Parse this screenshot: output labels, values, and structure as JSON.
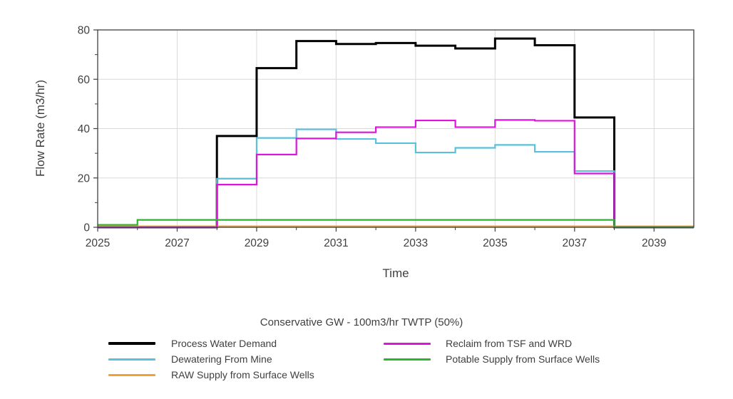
{
  "chart_data": {
    "type": "line",
    "style": "step-post",
    "title": "Conservative GW - 100m3/hr TWTP (50%)",
    "x_axis": {
      "label": "Time",
      "range": [
        2025,
        2040
      ],
      "major_ticks": [
        2025,
        2027,
        2029,
        2031,
        2033,
        2035,
        2037,
        2039
      ],
      "minor_ticks": [
        2026,
        2028,
        2030,
        2032,
        2034,
        2036,
        2038
      ],
      "gridlines": [
        2027,
        2029,
        2031,
        2033,
        2035,
        2037,
        2039
      ]
    },
    "y_axis": {
      "label": "Flow Rate (m3/hr)",
      "range": [
        0,
        80
      ],
      "major_ticks": [
        0,
        20,
        40,
        60,
        80
      ],
      "minor_ticks": [
        10,
        30,
        50,
        70
      ],
      "gridlines": [
        20,
        40,
        60
      ]
    },
    "years": [
      2025,
      2026,
      2027,
      2028,
      2029,
      2030,
      2031,
      2032,
      2033,
      2034,
      2035,
      2036,
      2037,
      2038,
      2039
    ],
    "series": [
      {
        "name": "Process Water Demand",
        "color": "#000000",
        "width": 3,
        "values": [
          0,
          0,
          0,
          37,
          64.5,
          75.5,
          74.3,
          74.7,
          73.6,
          72.5,
          76.5,
          73.8,
          44.5,
          0,
          0
        ]
      },
      {
        "name": "Dewatering From Mine",
        "color": "#5bc0dc",
        "width": 2.2,
        "values": [
          0,
          0,
          0,
          19.7,
          36.2,
          39.7,
          35.8,
          34.1,
          30.3,
          32.2,
          33.4,
          30.6,
          22.8,
          0,
          0
        ]
      },
      {
        "name": "RAW Supply from Surface Wells",
        "color": "#f2a133",
        "width": 2.2,
        "values": [
          0.4,
          0.4,
          0.4,
          0.4,
          0.4,
          0.4,
          0.4,
          0.4,
          0.4,
          0.4,
          0.4,
          0.4,
          0.4,
          0.4,
          0.4
        ]
      },
      {
        "name": "Reclaim from TSF and WRD",
        "color": "#dc14dc",
        "width": 2.2,
        "values": [
          0,
          0,
          0,
          17.3,
          29.5,
          36,
          38.5,
          40.6,
          43.3,
          40.6,
          43.5,
          43.2,
          21.8,
          0,
          0
        ]
      },
      {
        "name": "Potable Supply from Surface Wells",
        "color": "#2cb52c",
        "width": 2.2,
        "values": [
          1,
          3,
          3,
          3,
          3,
          3,
          3,
          3,
          3,
          3,
          3,
          3,
          3,
          0,
          0
        ]
      }
    ],
    "draw_order": [
      0,
      2,
      1,
      3,
      4
    ],
    "legend": {
      "title": "Conservative GW - 100m3/hr TWTP (50%)",
      "columns": [
        {
          "items": [
            {
              "label": "Process Water Demand",
              "series": 0
            },
            {
              "label": "Dewatering From Mine",
              "series": 1
            },
            {
              "label": "RAW Supply from Surface Wells",
              "series": 2
            }
          ]
        },
        {
          "items": [
            {
              "label": "Reclaim from TSF and WRD",
              "series": 3
            },
            {
              "label": "Potable Supply from Surface Wells",
              "series": 4
            }
          ]
        }
      ]
    },
    "colors": {
      "gridline": "#d9d9d9",
      "border": "#3f3f3f",
      "tick_text": "#3f3f3f"
    }
  }
}
